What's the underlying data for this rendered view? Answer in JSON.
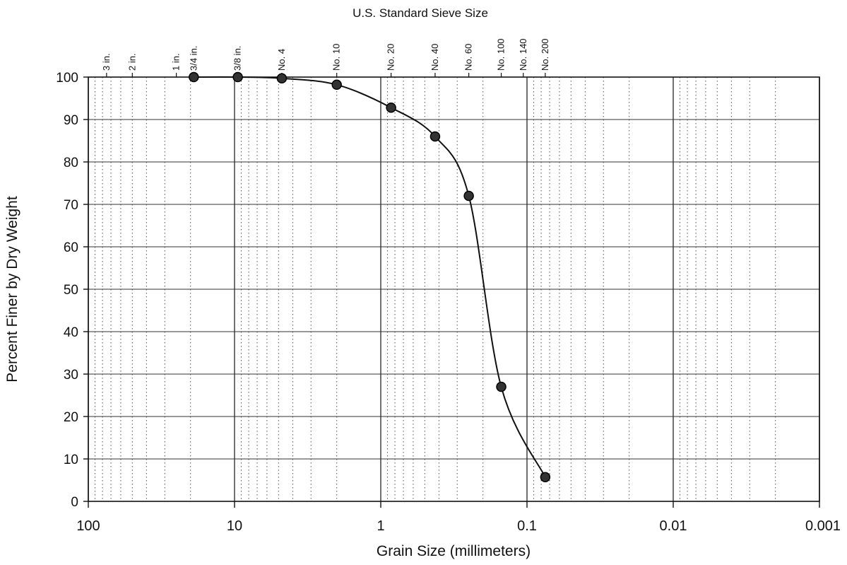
{
  "chart_data": {
    "type": "scatter",
    "title": "U.S. Standard Sieve Size",
    "xlabel": "Grain Size (millimeters)",
    "ylabel": "Percent Finer by Dry Weight",
    "x_scale": "log",
    "x_reversed": true,
    "xlim": [
      100,
      0.001
    ],
    "ylim": [
      0,
      100
    ],
    "grid": true,
    "x_tick_labels": [
      "100",
      "10",
      "1",
      "0.1",
      "0.01",
      "0.001"
    ],
    "y_tick_labels": [
      "0",
      "10",
      "20",
      "30",
      "40",
      "50",
      "60",
      "70",
      "80",
      "90",
      "100"
    ],
    "sieve_sizes": [
      {
        "label": "3 in.",
        "mm": 75
      },
      {
        "label": "2 in.",
        "mm": 50
      },
      {
        "label": "1 in.",
        "mm": 25
      },
      {
        "label": "3/4 in.",
        "mm": 19
      },
      {
        "label": "3/8 in.",
        "mm": 9.5
      },
      {
        "label": "No. 4",
        "mm": 4.75
      },
      {
        "label": "No. 10",
        "mm": 2.0
      },
      {
        "label": "No. 20",
        "mm": 0.85
      },
      {
        "label": "No. 40",
        "mm": 0.425
      },
      {
        "label": "No. 60",
        "mm": 0.25
      },
      {
        "label": "No. 100",
        "mm": 0.15
      },
      {
        "label": "No. 140",
        "mm": 0.106
      },
      {
        "label": "No. 200",
        "mm": 0.075
      }
    ],
    "series": [
      {
        "x": [
          19,
          9.5,
          4.75,
          2.0,
          0.85,
          0.425,
          0.25,
          0.15,
          0.075
        ],
        "y": [
          100,
          100,
          99.7,
          98.2,
          92.8,
          86,
          72,
          27,
          5.7
        ]
      }
    ],
    "colors": {
      "line": "#111111",
      "marker": "#333333",
      "grid": "#333333"
    }
  }
}
